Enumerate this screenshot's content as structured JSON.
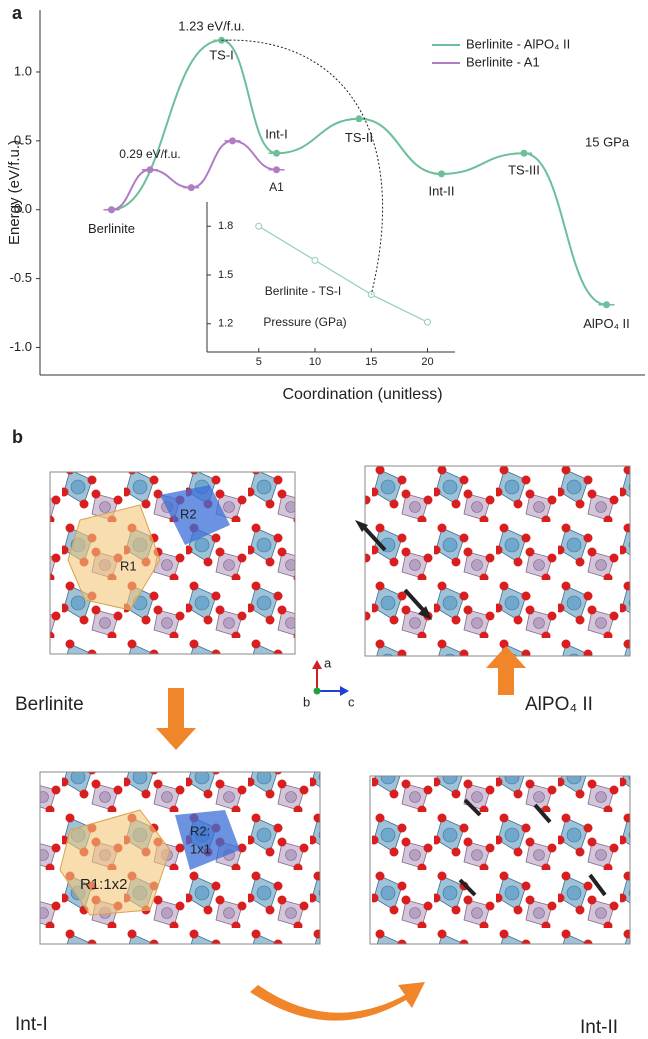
{
  "panel_labels": [
    "a",
    "b"
  ],
  "chart_data": [
    {
      "type": "line",
      "x_label": "Coordination (unitless)",
      "y_label": "Energy (eV/f.u.)",
      "xlim": [
        0,
        11
      ],
      "ylim": [
        -1.2,
        1.45
      ],
      "yticks": [
        {
          "value": -1,
          "label": "-1.0"
        },
        {
          "value": -0.5,
          "label": "-0.5"
        },
        {
          "value": 0,
          "label": "0.0"
        },
        {
          "value": 0.5,
          "label": "0.5"
        },
        {
          "value": 1,
          "label": "1.0"
        }
      ],
      "legend": "upper right",
      "series": [
        {
          "name": "Berlinite - AlPO₄ II",
          "color": "#6dbf9a",
          "x": [
            1.3,
            3.3,
            4.3,
            5.8,
            7.3,
            8.8,
            10.3
          ],
          "values": [
            0,
            1.23,
            0.41,
            0.66,
            0.26,
            0.41,
            -0.69
          ],
          "point_labels": [
            "Berlinite",
            "TS-I",
            "Int-I",
            "TS-II",
            "Int-II",
            "TS-III",
            "AlPO₄ II"
          ]
        },
        {
          "name": "Berlinite - A1",
          "color": "#b07cc6",
          "x": [
            1.3,
            2.0,
            2.75,
            3.5,
            4.3
          ],
          "values": [
            0,
            0.29,
            0.16,
            0.5,
            0.29
          ],
          "point_labels": [
            null,
            "0.29 eV/f.u.",
            null,
            null,
            "A1"
          ]
        }
      ],
      "annotations": [
        "1.23 eV/f.u.",
        "15 GPa"
      ]
    },
    {
      "type": "line",
      "title": "Berlinite - TS-I",
      "x_label": "Pressure (GPa)",
      "color": "#8fd0b0",
      "x": [
        5,
        10,
        15,
        20
      ],
      "values": [
        1.8,
        1.59,
        1.38,
        1.21
      ],
      "xlim": [
        2,
        22
      ],
      "ylim": [
        1.1,
        1.9
      ],
      "xticks": [
        5,
        10,
        15,
        20
      ],
      "yticks": [
        1.8,
        1.5,
        1.2
      ]
    }
  ],
  "panel_b": {
    "structures": [
      "Berlinite",
      "AlPO₄ II",
      "Int-I",
      "Int-II"
    ],
    "rings": [
      "R1",
      "R2",
      "R1:1x2",
      "R2:",
      "1x1"
    ],
    "axes": [
      "a",
      "b",
      "c"
    ]
  }
}
